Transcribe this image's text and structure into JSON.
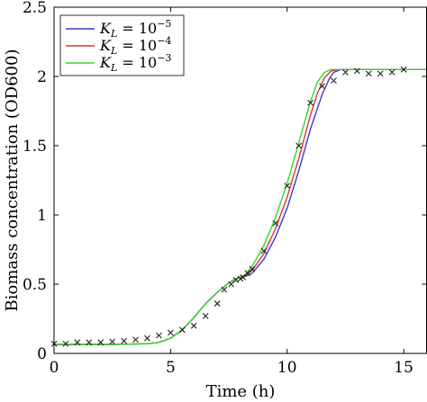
{
  "chart_data": {
    "type": "line",
    "xlabel": "Time (h)",
    "ylabel": "Biomass concentration (OD600)",
    "xlim": [
      0,
      16
    ],
    "ylim": [
      0,
      2.5
    ],
    "xticks": [
      "0",
      "5",
      "10",
      "15"
    ],
    "yticks": [
      "0",
      "0.5",
      "1",
      "1.5",
      "2",
      "2.5"
    ],
    "grid": false,
    "legend_position": "top-left",
    "series": [
      {
        "name": "K_L = 10^-5",
        "color": "#3a3ad0",
        "x": [
          0,
          1,
          2,
          3,
          4,
          4.5,
          5,
          5.5,
          6,
          6.5,
          7,
          7.5,
          7.8,
          8.0,
          8.2,
          8.5,
          9.0,
          9.5,
          10.0,
          10.5,
          11.0,
          11.5,
          11.8,
          12.0,
          12.3,
          12.6,
          13,
          14,
          15,
          16
        ],
        "y": [
          0.065,
          0.065,
          0.065,
          0.066,
          0.07,
          0.08,
          0.11,
          0.17,
          0.26,
          0.36,
          0.44,
          0.51,
          0.54,
          0.55,
          0.555,
          0.58,
          0.68,
          0.84,
          1.05,
          1.32,
          1.62,
          1.87,
          1.98,
          2.03,
          2.05,
          2.05,
          2.05,
          2.05,
          2.05,
          2.05
        ]
      },
      {
        "name": "K_L = 10^-4",
        "color": "#e0352a",
        "x": [
          0,
          1,
          2,
          3,
          4,
          4.5,
          5,
          5.5,
          6,
          6.5,
          7,
          7.5,
          7.8,
          8.0,
          8.2,
          8.5,
          9.0,
          9.5,
          10.0,
          10.5,
          11.0,
          11.3,
          11.6,
          11.9,
          12.2,
          12.5,
          13,
          14,
          15,
          16
        ],
        "y": [
          0.065,
          0.065,
          0.065,
          0.066,
          0.07,
          0.08,
          0.11,
          0.17,
          0.26,
          0.36,
          0.44,
          0.51,
          0.54,
          0.55,
          0.56,
          0.6,
          0.72,
          0.9,
          1.13,
          1.41,
          1.72,
          1.88,
          1.99,
          2.04,
          2.05,
          2.05,
          2.05,
          2.05,
          2.05,
          2.05
        ]
      },
      {
        "name": "K_L = 10^-3",
        "color": "#33d833",
        "x": [
          0,
          1,
          2,
          3,
          4,
          4.5,
          5,
          5.5,
          6,
          6.5,
          7,
          7.5,
          7.8,
          8.0,
          8.2,
          8.5,
          9.0,
          9.5,
          10.0,
          10.5,
          11.0,
          11.3,
          11.6,
          11.9,
          12.1,
          12.4,
          13,
          14,
          15,
          16
        ],
        "y": [
          0.065,
          0.065,
          0.065,
          0.066,
          0.07,
          0.08,
          0.11,
          0.17,
          0.26,
          0.36,
          0.44,
          0.51,
          0.54,
          0.55,
          0.57,
          0.63,
          0.78,
          0.98,
          1.23,
          1.52,
          1.82,
          1.96,
          2.03,
          2.05,
          2.05,
          2.05,
          2.05,
          2.05,
          2.05,
          2.05
        ]
      },
      {
        "name": "",
        "marker": "x",
        "color": "#222222",
        "x": [
          0,
          0.5,
          1,
          1.5,
          2,
          2.5,
          3,
          3.5,
          4,
          4.5,
          5,
          5.5,
          6,
          6.5,
          7,
          7.3,
          7.6,
          7.8,
          8.0,
          8.1,
          8.3,
          8.5,
          9.0,
          9.5,
          10.0,
          10.5,
          11.0,
          11.5,
          12.0,
          12.5,
          13,
          13.5,
          14,
          14.5,
          15
        ],
        "y": [
          0.07,
          0.07,
          0.08,
          0.08,
          0.08,
          0.085,
          0.09,
          0.1,
          0.11,
          0.13,
          0.15,
          0.17,
          0.2,
          0.27,
          0.36,
          0.46,
          0.5,
          0.53,
          0.54,
          0.55,
          0.58,
          0.61,
          0.74,
          0.94,
          1.21,
          1.5,
          1.81,
          1.93,
          1.97,
          2.03,
          2.04,
          2.02,
          2.02,
          2.03,
          2.05
        ]
      }
    ],
    "legend": [
      {
        "base": "K",
        "sub": "L",
        "eq": " = 10",
        "sup": "−5"
      },
      {
        "base": "K",
        "sub": "L",
        "eq": " = 10",
        "sup": "−4"
      },
      {
        "base": "K",
        "sub": "L",
        "eq": " = 10",
        "sup": "−3"
      }
    ]
  }
}
